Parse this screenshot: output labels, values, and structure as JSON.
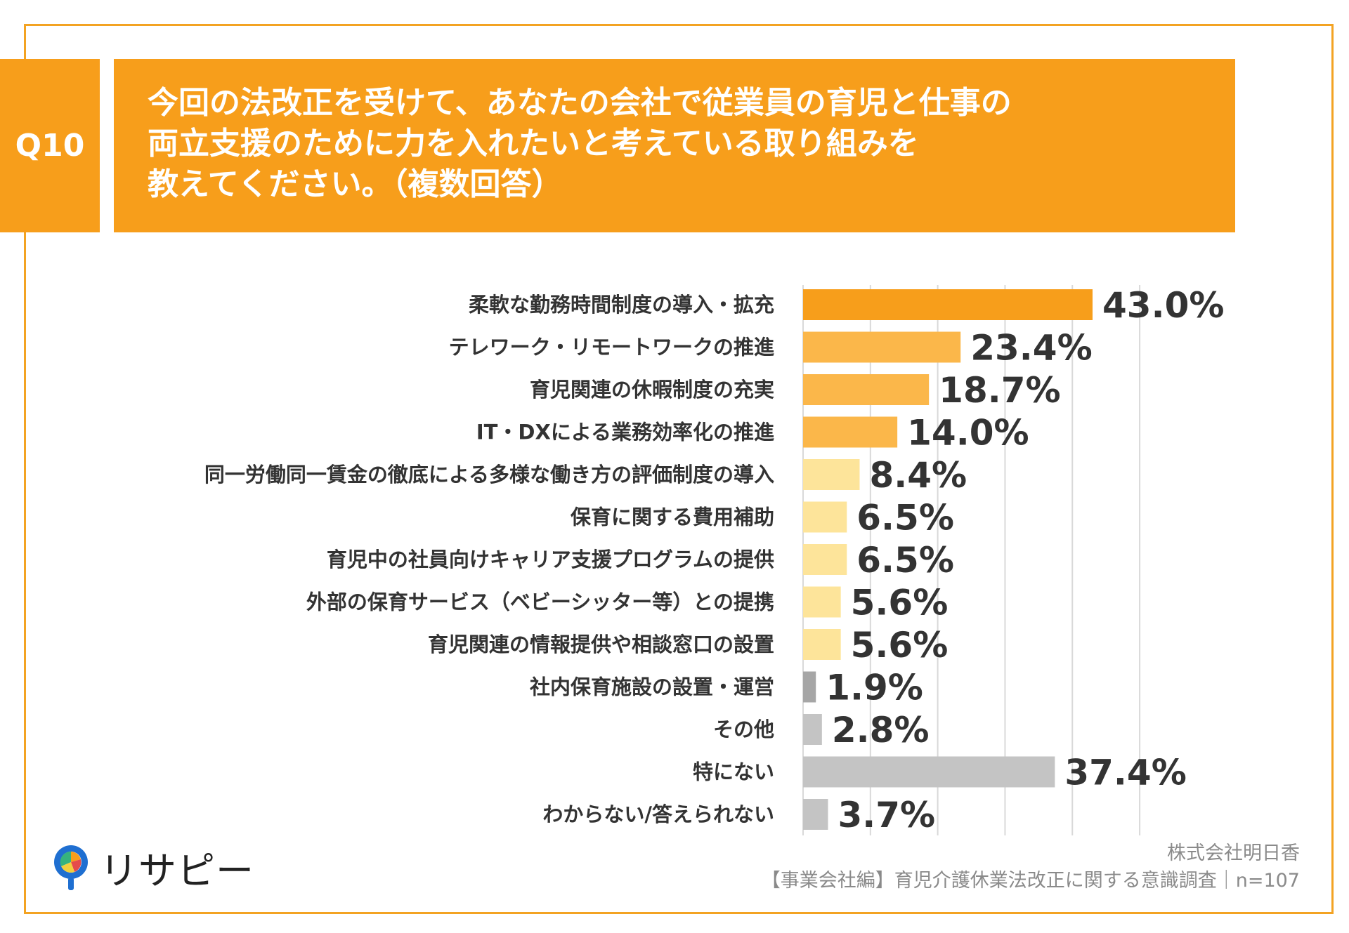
{
  "question": {
    "number": "Q10",
    "lines": [
      "今回の法改正を受けて、あなたの会社で従業員の育児と仕事の",
      "両立支援のために力を入れたいと考えている取り組みを",
      "教えてください。（複数回答）"
    ]
  },
  "chart_data": {
    "type": "bar",
    "orientation": "horizontal",
    "title": "今回の法改正を受けて、あなたの会社で従業員の育児と仕事の両立支援のために力を入れたいと考えている取り組みを教えてください。（複数回答）",
    "xlim": [
      0,
      50
    ],
    "grid": true,
    "categories": [
      "柔軟な勤務時間制度の導入・拡充",
      "テレワーク・リモートワークの推進",
      "育児関連の休暇制度の充実",
      "IT・DXによる業務効率化の推進",
      "同一労働同一賃金の徹底による多様な働き方の評価制度の導入",
      "保育に関する費用補助",
      "育児中の社員向けキャリア支援プログラムの提供",
      "外部の保育サービス（ベビーシッター等）との提携",
      "育児関連の情報提供や相談窓口の設置",
      "社内保育施設の設置・運営",
      "その他",
      "特にない",
      "わからない/答えられない"
    ],
    "values": [
      43.0,
      23.4,
      18.7,
      14.0,
      8.4,
      6.5,
      6.5,
      5.6,
      5.6,
      1.9,
      2.8,
      37.4,
      3.7
    ],
    "value_labels": [
      "43.0%",
      "23.4%",
      "18.7%",
      "14.0%",
      "8.4%",
      "6.5%",
      "6.5%",
      "5.6%",
      "5.6%",
      "1.9%",
      "2.8%",
      "37.4%",
      "3.7%"
    ],
    "colors": [
      "#f79e1b",
      "#fbb74a",
      "#fbb74a",
      "#fbb74a",
      "#fde49a",
      "#fde49a",
      "#fde49a",
      "#fde49a",
      "#fde49a",
      "#a6a6a6",
      "#c4c4c4",
      "#c4c4c4",
      "#c4c4c4"
    ]
  },
  "logo": {
    "text": "リサピー"
  },
  "footer": {
    "company": "株式会社明日香",
    "survey": "【事業会社編】育児介護休業法改正に関する意識調査｜n=107"
  }
}
